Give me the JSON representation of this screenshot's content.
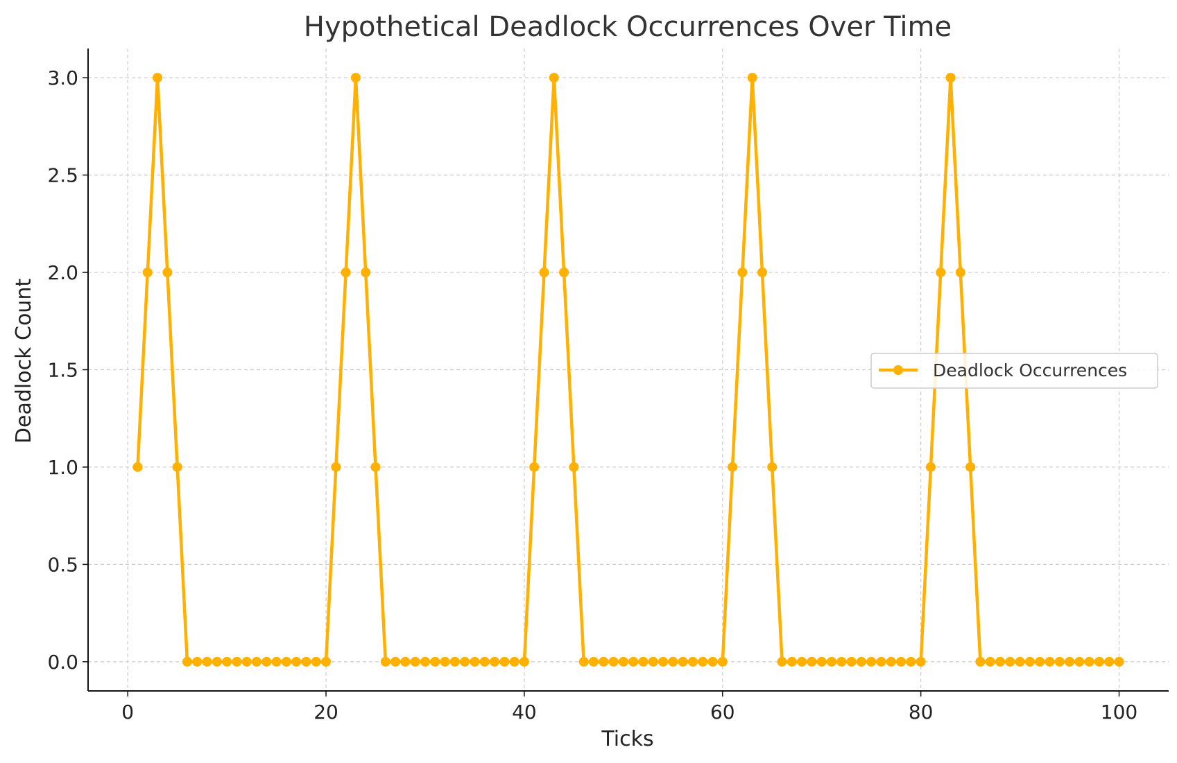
{
  "chart_data": {
    "type": "line",
    "title": "Hypothetical Deadlock Occurrences Over Time",
    "xlabel": "Ticks",
    "ylabel": "Deadlock Count",
    "xlim": [
      -4,
      105
    ],
    "ylim": [
      -0.15,
      3.15
    ],
    "xticks": [
      0,
      20,
      40,
      60,
      80,
      100
    ],
    "xtick_labels": [
      "0",
      "20",
      "40",
      "60",
      "80",
      "100"
    ],
    "yticks": [
      0.0,
      0.5,
      1.0,
      1.5,
      2.0,
      2.5,
      3.0
    ],
    "ytick_labels": [
      "0.0",
      "0.5",
      "1.0",
      "1.5",
      "2.0",
      "2.5",
      "3.0"
    ],
    "grid": true,
    "legend_position": "center-right",
    "series": [
      {
        "name": "Deadlock Occurrences",
        "color": "#FFB000",
        "x": [
          1,
          2,
          3,
          4,
          5,
          6,
          7,
          8,
          9,
          10,
          11,
          12,
          13,
          14,
          15,
          16,
          17,
          18,
          19,
          20,
          21,
          22,
          23,
          24,
          25,
          26,
          27,
          28,
          29,
          30,
          31,
          32,
          33,
          34,
          35,
          36,
          37,
          38,
          39,
          40,
          41,
          42,
          43,
          44,
          45,
          46,
          47,
          48,
          49,
          50,
          51,
          52,
          53,
          54,
          55,
          56,
          57,
          58,
          59,
          60,
          61,
          62,
          63,
          64,
          65,
          66,
          67,
          68,
          69,
          70,
          71,
          72,
          73,
          74,
          75,
          76,
          77,
          78,
          79,
          80,
          81,
          82,
          83,
          84,
          85,
          86,
          87,
          88,
          89,
          90,
          91,
          92,
          93,
          94,
          95,
          96,
          97,
          98,
          99,
          100
        ],
        "y": [
          1,
          2,
          3,
          2,
          1,
          0,
          0,
          0,
          0,
          0,
          0,
          0,
          0,
          0,
          0,
          0,
          0,
          0,
          0,
          0,
          1,
          2,
          3,
          2,
          1,
          0,
          0,
          0,
          0,
          0,
          0,
          0,
          0,
          0,
          0,
          0,
          0,
          0,
          0,
          0,
          1,
          2,
          3,
          2,
          1,
          0,
          0,
          0,
          0,
          0,
          0,
          0,
          0,
          0,
          0,
          0,
          0,
          0,
          0,
          0,
          1,
          2,
          3,
          2,
          1,
          0,
          0,
          0,
          0,
          0,
          0,
          0,
          0,
          0,
          0,
          0,
          0,
          0,
          0,
          0,
          1,
          2,
          3,
          2,
          1,
          0,
          0,
          0,
          0,
          0,
          0,
          0,
          0,
          0,
          0,
          0,
          0,
          0,
          0,
          0
        ]
      }
    ]
  }
}
